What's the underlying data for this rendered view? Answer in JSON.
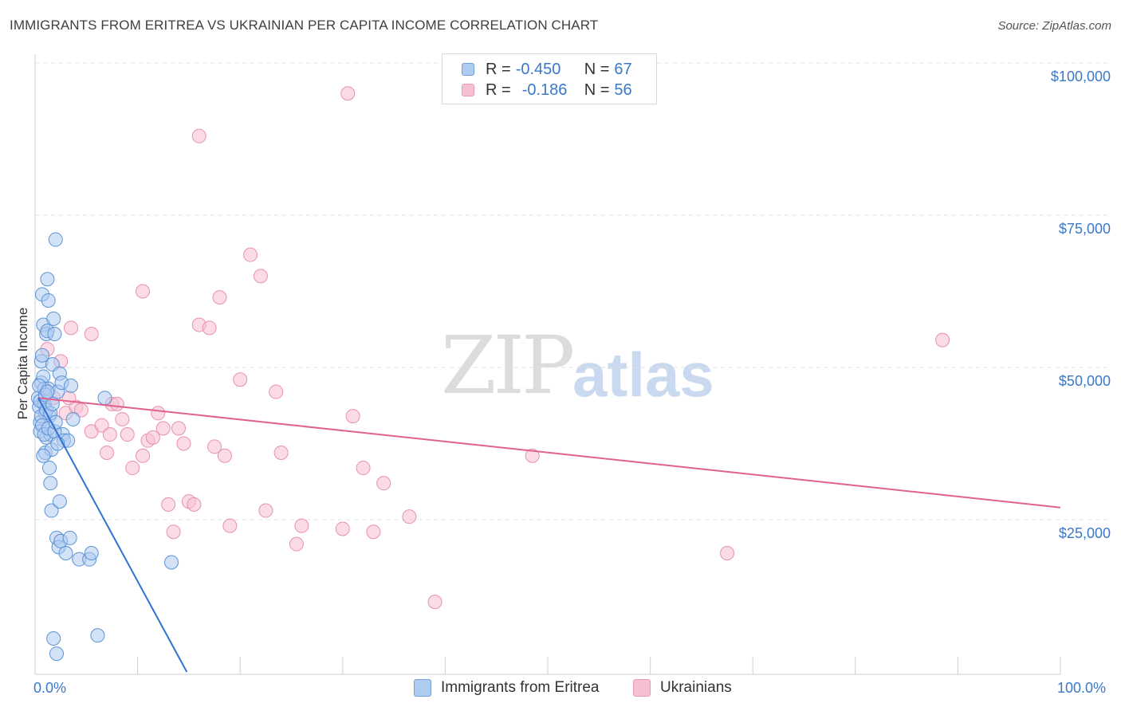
{
  "header": {
    "title": "IMMIGRANTS FROM ERITREA VS UKRAINIAN PER CAPITA INCOME CORRELATION CHART",
    "source": "Source: ZipAtlas.com"
  },
  "watermark": {
    "zip": "ZIP",
    "atlas": "atlas"
  },
  "stats": [
    {
      "r_label": "R =",
      "r_value": "-0.450",
      "n_label": "N =",
      "n_value": "67",
      "color": "#aecbf0"
    },
    {
      "r_label": "R =",
      "r_value": "-0.186",
      "n_label": "N =",
      "n_value": "56",
      "color": "#f7b8cc"
    }
  ],
  "colors": {
    "eritrea_fill": "#aecbf0",
    "eritrea_stroke": "#5b93d6",
    "eritrea_line": "#2f72d2",
    "ukraine_fill": "#f7c0d1",
    "ukraine_stroke": "#e890ae",
    "ukraine_line": "#e0628e",
    "axis_label": "#3a78c9",
    "grid": "#e2e2e2"
  },
  "chart_data": {
    "type": "scatter",
    "title": "IMMIGRANTS FROM ERITREA VS UKRAINIAN PER CAPITA INCOME CORRELATION CHART",
    "xlabel": "",
    "ylabel": "Per Capita Income",
    "xlim": [
      0,
      100
    ],
    "ylim": [
      0,
      105000
    ],
    "x_tick_labels": [
      "0.0%",
      "100.0%"
    ],
    "y_ticks": [
      25000,
      50000,
      75000,
      100000
    ],
    "y_tick_labels": [
      "$25,000",
      "$50,000",
      "$75,000",
      "$100,000"
    ],
    "grid": true,
    "legend_position": "bottom-center",
    "series": [
      {
        "name": "Immigrants from Eritrea",
        "trend": {
          "x0": 0.3,
          "y0": 45000,
          "x1": 14.8,
          "y1": 0
        },
        "points": [
          [
            0.3,
            45000
          ],
          [
            0.4,
            43500
          ],
          [
            0.5,
            41000
          ],
          [
            0.5,
            39500
          ],
          [
            0.6,
            47500
          ],
          [
            0.6,
            51000
          ],
          [
            0.7,
            52000
          ],
          [
            0.7,
            62000
          ],
          [
            0.8,
            57000
          ],
          [
            0.8,
            48500
          ],
          [
            0.9,
            46500
          ],
          [
            0.9,
            44000
          ],
          [
            1.0,
            42500
          ],
          [
            1.0,
            36000
          ],
          [
            1.1,
            38500
          ],
          [
            1.1,
            55500
          ],
          [
            1.2,
            64500
          ],
          [
            1.2,
            56000
          ],
          [
            1.3,
            61000
          ],
          [
            1.3,
            46500
          ],
          [
            1.4,
            42000
          ],
          [
            1.4,
            33500
          ],
          [
            1.5,
            39000
          ],
          [
            1.5,
            31000
          ],
          [
            1.6,
            36500
          ],
          [
            1.6,
            26500
          ],
          [
            1.7,
            50500
          ],
          [
            1.8,
            58000
          ],
          [
            1.8,
            5500
          ],
          [
            1.9,
            55500
          ],
          [
            2.0,
            71000
          ],
          [
            2.1,
            22000
          ],
          [
            2.1,
            3000
          ],
          [
            2.2,
            46000
          ],
          [
            2.3,
            20500
          ],
          [
            2.4,
            28000
          ],
          [
            2.4,
            49000
          ],
          [
            2.5,
            21500
          ],
          [
            2.6,
            47500
          ],
          [
            2.7,
            39000
          ],
          [
            2.8,
            38000
          ],
          [
            3.0,
            19500
          ],
          [
            3.2,
            38000
          ],
          [
            3.4,
            22000
          ],
          [
            3.5,
            47000
          ],
          [
            3.7,
            41500
          ],
          [
            4.3,
            18500
          ],
          [
            5.3,
            18500
          ],
          [
            5.5,
            19500
          ],
          [
            6.1,
            6000
          ],
          [
            6.8,
            45000
          ],
          [
            13.3,
            18000
          ],
          [
            0.4,
            47000
          ],
          [
            0.5,
            44500
          ],
          [
            0.6,
            42000
          ],
          [
            0.7,
            40500
          ],
          [
            0.8,
            35500
          ],
          [
            0.9,
            39000
          ],
          [
            1.0,
            45500
          ],
          [
            1.1,
            43000
          ],
          [
            1.2,
            46000
          ],
          [
            1.3,
            40000
          ],
          [
            1.5,
            42500
          ],
          [
            1.7,
            44000
          ],
          [
            1.9,
            39500
          ],
          [
            2.0,
            41000
          ],
          [
            2.2,
            37500
          ]
        ]
      },
      {
        "name": "Ukrainians",
        "trend": {
          "x0": 0.3,
          "y0": 45000,
          "x1": 100,
          "y1": 27000
        },
        "points": [
          [
            1.2,
            53000
          ],
          [
            1.8,
            45000
          ],
          [
            2.5,
            51000
          ],
          [
            3.0,
            42500
          ],
          [
            3.5,
            56500
          ],
          [
            4.0,
            43500
          ],
          [
            4.5,
            43000
          ],
          [
            5.5,
            39500
          ],
          [
            5.5,
            55500
          ],
          [
            6.5,
            40500
          ],
          [
            7.0,
            36000
          ],
          [
            7.5,
            44000
          ],
          [
            8.0,
            44000
          ],
          [
            8.5,
            41500
          ],
          [
            9.0,
            39000
          ],
          [
            9.5,
            33500
          ],
          [
            10.5,
            35500
          ],
          [
            10.5,
            62500
          ],
          [
            11.0,
            38000
          ],
          [
            11.5,
            38500
          ],
          [
            12.0,
            42500
          ],
          [
            13.0,
            27500
          ],
          [
            13.5,
            23000
          ],
          [
            14.0,
            40000
          ],
          [
            14.5,
            37500
          ],
          [
            15.0,
            28000
          ],
          [
            15.5,
            27500
          ],
          [
            16.0,
            57000
          ],
          [
            16.0,
            88000
          ],
          [
            17.0,
            56500
          ],
          [
            17.5,
            37000
          ],
          [
            18.0,
            61500
          ],
          [
            18.5,
            35500
          ],
          [
            19.0,
            24000
          ],
          [
            20.0,
            48000
          ],
          [
            21.0,
            68500
          ],
          [
            22.0,
            65000
          ],
          [
            22.5,
            26500
          ],
          [
            23.5,
            46000
          ],
          [
            24.0,
            36000
          ],
          [
            25.5,
            21000
          ],
          [
            26.0,
            24000
          ],
          [
            30.0,
            23500
          ],
          [
            30.5,
            95000
          ],
          [
            31.0,
            42000
          ],
          [
            32.0,
            33500
          ],
          [
            33.0,
            23000
          ],
          [
            34.0,
            31000
          ],
          [
            36.5,
            25500
          ],
          [
            39.0,
            11500
          ],
          [
            48.5,
            35500
          ],
          [
            67.5,
            19500
          ],
          [
            88.5,
            54500
          ],
          [
            3.3,
            45000
          ],
          [
            7.3,
            39000
          ],
          [
            12.5,
            40000
          ]
        ]
      }
    ]
  }
}
